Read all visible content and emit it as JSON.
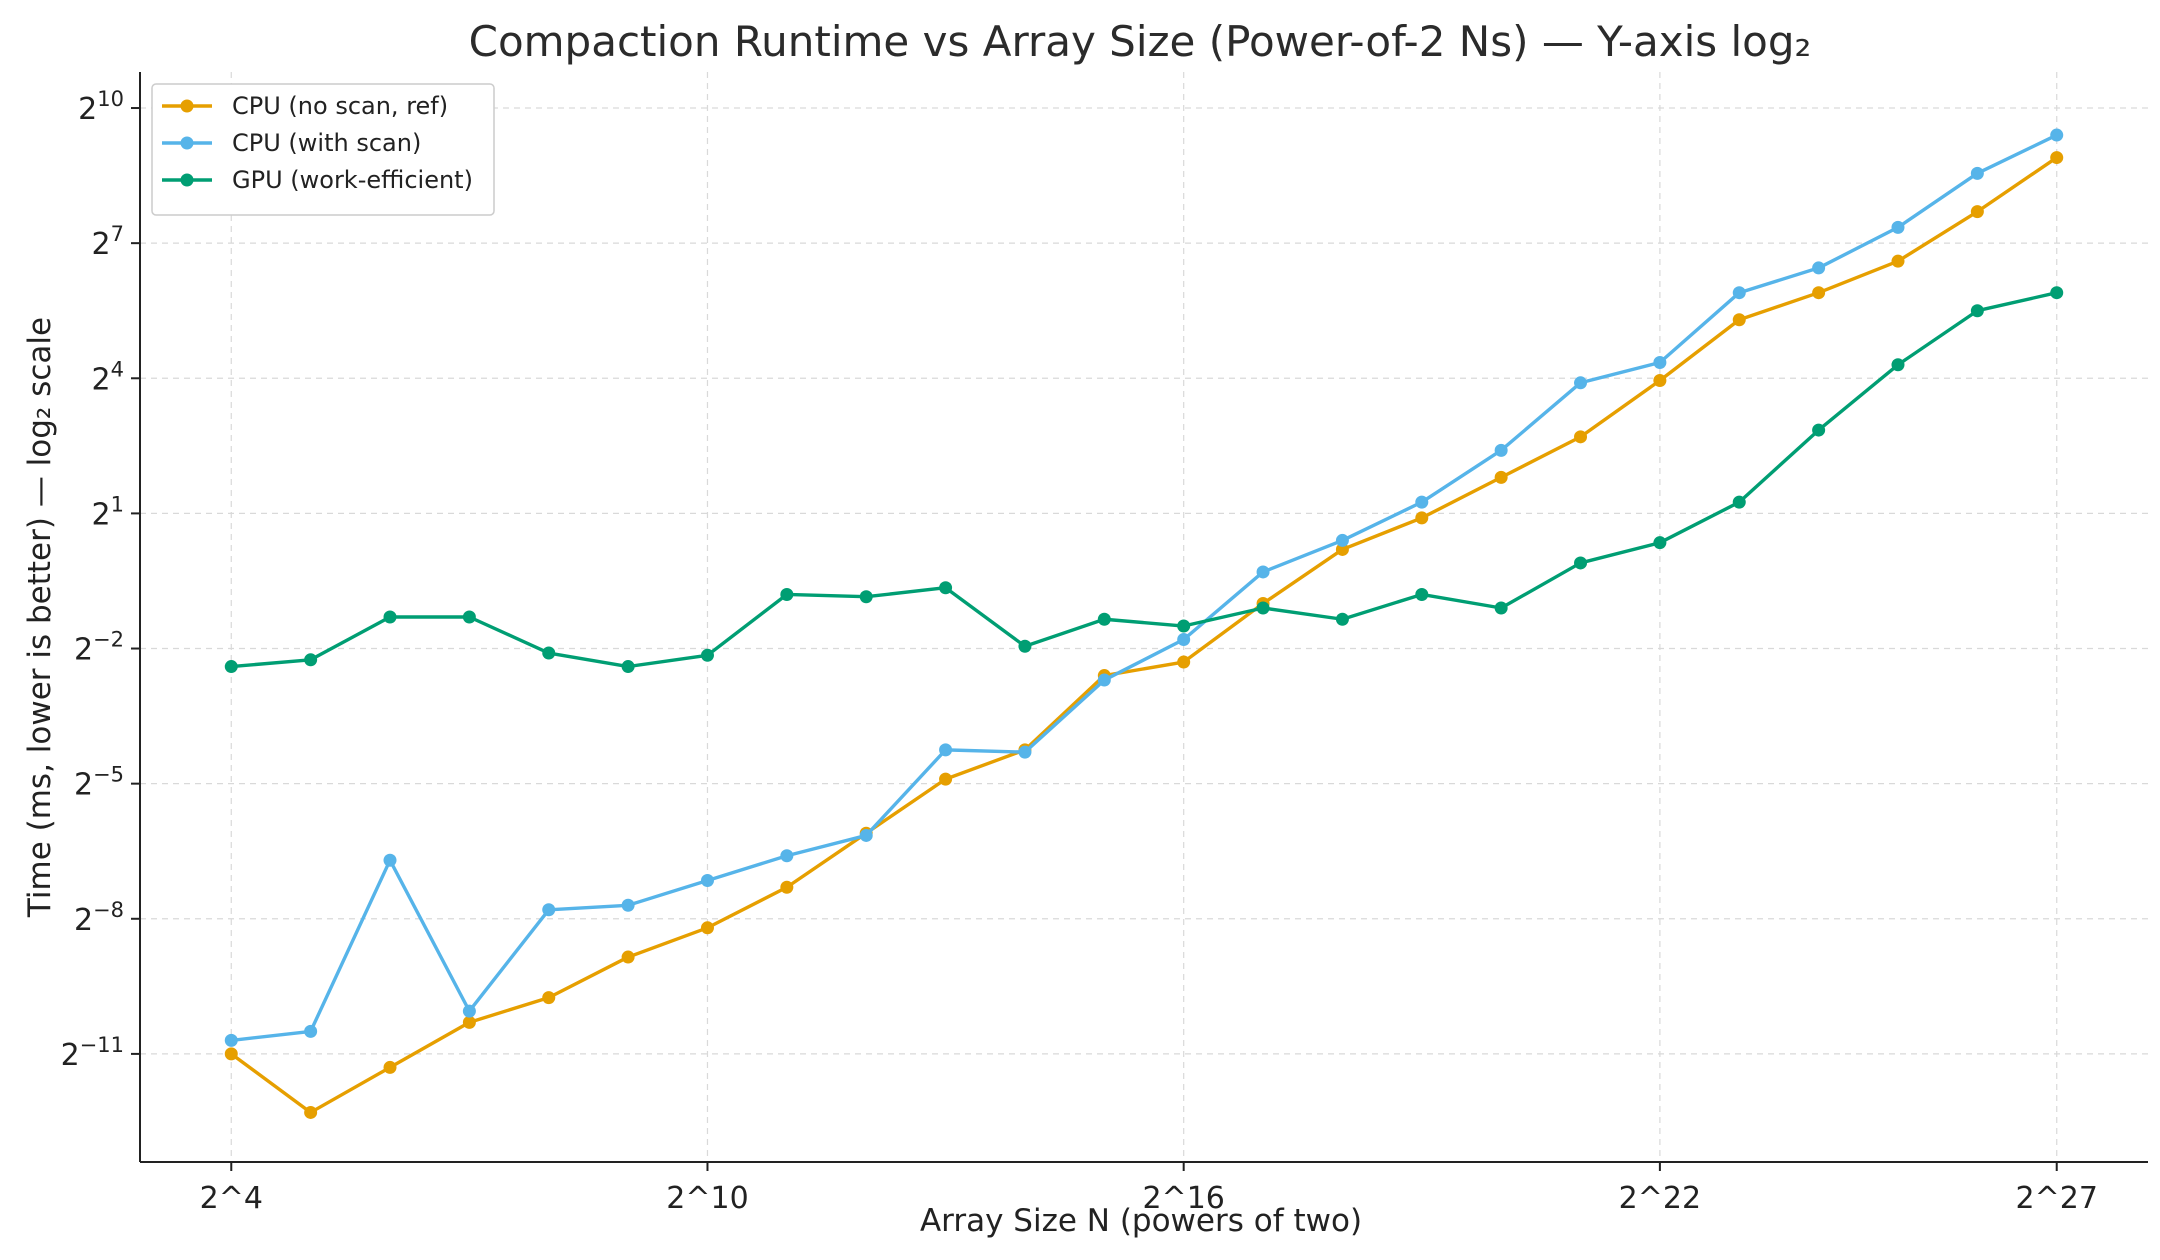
{
  "chart_data": {
    "type": "line",
    "title": "Compaction Runtime vs Array Size (Power-of-2 Ns) — Y-axis log₂",
    "xlabel": "Array Size N (powers of two)",
    "ylabel": "Time (ms, lower is better) — log₂ scale",
    "x_scale": "log2",
    "y_scale": "log2",
    "xlim_log2": [
      2.85,
      28.15
    ],
    "ylim_log2": [
      -13.4,
      10.8
    ],
    "x_ticks": [
      {
        "log2": 4,
        "label": "2^4"
      },
      {
        "log2": 10,
        "label": "2^10"
      },
      {
        "log2": 16,
        "label": "2^16"
      },
      {
        "log2": 22,
        "label": "2^22"
      },
      {
        "log2": 27,
        "label": "2^27"
      }
    ],
    "y_ticks": [
      {
        "log2": 10,
        "base": "2",
        "exp": "10"
      },
      {
        "log2": 7,
        "base": "2",
        "exp": "7"
      },
      {
        "log2": 4,
        "base": "2",
        "exp": "4"
      },
      {
        "log2": 1,
        "base": "2",
        "exp": "1"
      },
      {
        "log2": -2,
        "base": "2",
        "exp": "−2"
      },
      {
        "log2": -5,
        "base": "2",
        "exp": "−5"
      },
      {
        "log2": -8,
        "base": "2",
        "exp": "−8"
      },
      {
        "log2": -11,
        "base": "2",
        "exp": "−11"
      }
    ],
    "grid": true,
    "legend_position": "top-left",
    "x_log2": [
      4,
      5,
      6,
      7,
      8,
      9,
      10,
      11,
      12,
      13,
      14,
      15,
      16,
      17,
      18,
      19,
      20,
      21,
      22,
      23,
      24,
      25,
      26,
      27
    ],
    "series": [
      {
        "name": "CPU (no scan, ref)",
        "color": "#E69F00",
        "y_log2": [
          -11.0,
          -12.3,
          -11.3,
          -10.3,
          -9.75,
          -8.85,
          -8.2,
          -7.3,
          -6.1,
          -4.9,
          -4.25,
          -2.6,
          -2.3,
          -1.0,
          0.2,
          0.9,
          1.8,
          2.7,
          3.95,
          5.3,
          5.9,
          6.6,
          7.7,
          8.9
        ],
        "y_ms": [
          0.00049,
          0.0002,
          0.0004,
          0.0008,
          0.0012,
          0.0022,
          0.0034,
          0.0063,
          0.0146,
          0.0335,
          0.0526,
          0.165,
          0.203,
          0.5,
          1.15,
          1.87,
          3.48,
          6.5,
          15.5,
          39.4,
          59.7,
          97,
          208,
          478
        ]
      },
      {
        "name": "CPU (with scan)",
        "color": "#56B4E9",
        "y_log2": [
          -10.7,
          -10.5,
          -6.7,
          -10.05,
          -7.8,
          -7.7,
          -7.15,
          -6.6,
          -6.15,
          -4.25,
          -4.3,
          -2.7,
          -1.8,
          -0.3,
          0.4,
          1.25,
          2.4,
          3.9,
          4.35,
          5.9,
          6.45,
          7.35,
          8.55,
          9.4
        ],
        "y_ms": [
          0.0006,
          0.0007,
          0.0096,
          0.0009,
          0.0045,
          0.0048,
          0.007,
          0.0103,
          0.0141,
          0.0526,
          0.0508,
          0.154,
          0.287,
          0.812,
          1.32,
          2.38,
          5.28,
          14.9,
          20.4,
          59.7,
          87.4,
          163,
          375,
          676
        ]
      },
      {
        "name": "GPU (work-efficient)",
        "color": "#009E73",
        "y_log2": [
          -2.4,
          -2.25,
          -1.3,
          -1.3,
          -2.1,
          -2.4,
          -2.15,
          -0.8,
          -0.85,
          -0.65,
          -1.95,
          -1.35,
          -1.5,
          -1.1,
          -1.35,
          -0.8,
          -1.1,
          -0.1,
          0.35,
          1.25,
          2.85,
          4.3,
          5.5,
          5.9
        ],
        "y_ms": [
          0.19,
          0.21,
          0.41,
          0.41,
          0.23,
          0.19,
          0.23,
          0.57,
          0.55,
          0.64,
          0.26,
          0.39,
          0.35,
          0.47,
          0.39,
          0.57,
          0.47,
          0.93,
          1.27,
          2.38,
          7.2,
          19.7,
          45.3,
          59.7
        ]
      }
    ]
  }
}
